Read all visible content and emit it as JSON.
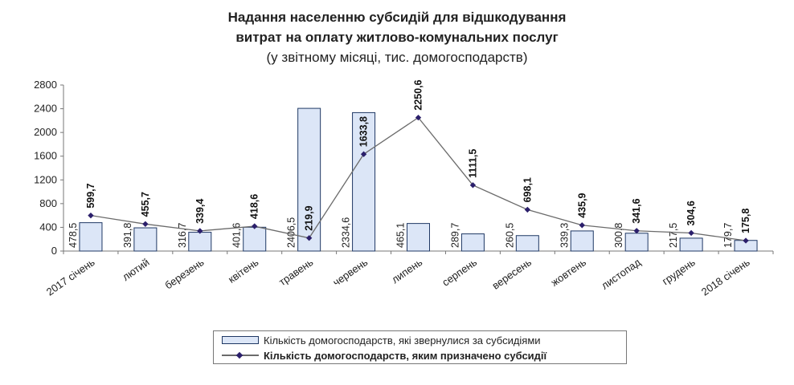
{
  "chart_data": {
    "type": "bar+line",
    "title": "Надання населенню субсидій для відшкодування",
    "title_line2": "витрат на оплату житлово-комунальних послуг",
    "subtitle": "(у звітному місяці, тис. домогосподарств)",
    "categories": [
      "2017 січень",
      "лютий",
      "березень",
      "квітень",
      "травень",
      "червень",
      "липень",
      "серпень",
      "вересень",
      "жовтень",
      "листопад",
      "грудень",
      "2018 січень"
    ],
    "ylim": [
      0,
      2800
    ],
    "yticks": [
      "0",
      "400",
      "800",
      "1200",
      "1600",
      "2000",
      "2400",
      "2800"
    ],
    "series": [
      {
        "name": "Кількість домогосподарств, які звернулися за субсидіями",
        "kind": "bar",
        "color": "#dce6f7",
        "edge": "#1f3864",
        "values": [
          478.5,
          391.8,
          316.7,
          401.6,
          2406.5,
          2334.6,
          465.1,
          289.7,
          260.5,
          339.3,
          300.8,
          217.5,
          179.7
        ],
        "labels": [
          "478,5",
          "391,8",
          "316,7",
          "401,6",
          "2406,5",
          "2334,6",
          "465,1",
          "289,7",
          "260,5",
          "339,3",
          "300,8",
          "217,5",
          "179,7"
        ]
      },
      {
        "name": "Кількість домогосподарств, яким призначено субсидії",
        "kind": "line",
        "color": "#6b6b6b",
        "marker": "#2b1f6b",
        "values": [
          599.7,
          455.7,
          339.4,
          418.6,
          219.9,
          1633.8,
          2250.6,
          1111.5,
          698.1,
          435.9,
          341.6,
          304.6,
          175.8
        ],
        "labels": [
          "599,7",
          "455,7",
          "339,4",
          "418,6",
          "219,9",
          "1633,8",
          "2250,6",
          "1111,5",
          "698,1",
          "435,9",
          "341,6",
          "304,6",
          "175,8"
        ]
      }
    ],
    "legend_position": "bottom"
  }
}
